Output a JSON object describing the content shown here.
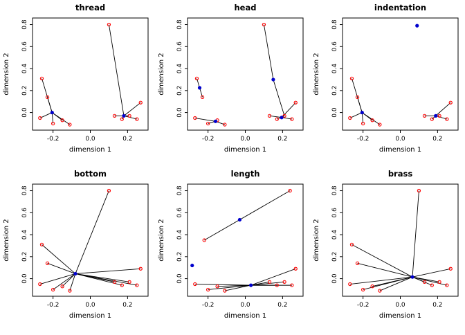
{
  "figure": {
    "background": "#ffffff",
    "rows": 2,
    "cols": 3
  },
  "chart_data": {
    "type": "scatter",
    "xlabel": "dimension 1",
    "ylabel": "dimension 2",
    "xlim": [
      -0.31,
      0.31
    ],
    "ylim": [
      -0.16,
      0.86
    ],
    "xticks": [
      -0.2,
      0.0,
      0.2
    ],
    "yticks": [
      0.0,
      0.2,
      0.4,
      0.6,
      0.8
    ],
    "grid": false,
    "legend": "none",
    "point_color": "#ff0000",
    "center_color": "#0000cd",
    "line_color": "#000000",
    "panels": [
      {
        "title": "thread",
        "red_points": [
          [
            -0.26,
            0.31
          ],
          [
            -0.23,
            0.14
          ],
          [
            -0.27,
            -0.05
          ],
          [
            -0.2,
            -0.1
          ],
          [
            -0.15,
            -0.07
          ],
          [
            -0.11,
            -0.11
          ],
          [
            0.1,
            0.8
          ],
          [
            0.13,
            -0.03
          ],
          [
            0.17,
            -0.06
          ],
          [
            0.21,
            -0.03
          ],
          [
            0.25,
            -0.06
          ],
          [
            0.27,
            0.09
          ]
        ],
        "blue_points": [
          [
            -0.205,
            0.0
          ],
          [
            0.18,
            -0.03
          ]
        ],
        "segments": [
          [
            -0.205,
            0.0,
            -0.26,
            0.31
          ],
          [
            -0.205,
            0.0,
            -0.23,
            0.14
          ],
          [
            -0.205,
            0.0,
            -0.27,
            -0.05
          ],
          [
            -0.205,
            0.0,
            -0.2,
            -0.1
          ],
          [
            -0.205,
            0.0,
            -0.15,
            -0.07
          ],
          [
            -0.205,
            0.0,
            -0.11,
            -0.11
          ],
          [
            0.18,
            -0.03,
            0.1,
            0.8
          ],
          [
            0.18,
            -0.03,
            0.13,
            -0.03
          ],
          [
            0.18,
            -0.03,
            0.17,
            -0.06
          ],
          [
            0.18,
            -0.03,
            0.21,
            -0.03
          ],
          [
            0.18,
            -0.03,
            0.25,
            -0.06
          ],
          [
            0.18,
            -0.03,
            0.27,
            0.09
          ]
        ]
      },
      {
        "title": "head",
        "red_points": [
          [
            -0.26,
            0.31
          ],
          [
            -0.23,
            0.14
          ],
          [
            -0.27,
            -0.05
          ],
          [
            -0.2,
            -0.1
          ],
          [
            -0.15,
            -0.07
          ],
          [
            -0.11,
            -0.11
          ],
          [
            0.1,
            0.8
          ],
          [
            0.13,
            -0.03
          ],
          [
            0.17,
            -0.06
          ],
          [
            0.21,
            -0.03
          ],
          [
            0.25,
            -0.06
          ],
          [
            0.27,
            0.09
          ]
        ],
        "blue_points": [
          [
            -0.245,
            0.225
          ],
          [
            -0.16,
            -0.08
          ],
          [
            0.15,
            0.3
          ],
          [
            0.195,
            -0.045
          ]
        ],
        "segments": [
          [
            -0.245,
            0.225,
            -0.26,
            0.31
          ],
          [
            -0.245,
            0.225,
            -0.23,
            0.14
          ],
          [
            -0.16,
            -0.08,
            -0.27,
            -0.05
          ],
          [
            -0.16,
            -0.08,
            -0.2,
            -0.1
          ],
          [
            -0.16,
            -0.08,
            -0.15,
            -0.07
          ],
          [
            -0.16,
            -0.08,
            -0.11,
            -0.11
          ],
          [
            0.15,
            0.3,
            0.1,
            0.8
          ],
          [
            0.15,
            0.3,
            0.21,
            -0.03
          ],
          [
            0.195,
            -0.045,
            0.13,
            -0.03
          ],
          [
            0.195,
            -0.045,
            0.17,
            -0.06
          ],
          [
            0.195,
            -0.045,
            0.21,
            -0.03
          ],
          [
            0.195,
            -0.045,
            0.25,
            -0.06
          ],
          [
            0.195,
            -0.045,
            0.27,
            0.09
          ]
        ]
      },
      {
        "title": "indentation",
        "red_points": [
          [
            -0.26,
            0.31
          ],
          [
            -0.23,
            0.14
          ],
          [
            -0.27,
            -0.05
          ],
          [
            -0.2,
            -0.1
          ],
          [
            -0.15,
            -0.07
          ],
          [
            -0.11,
            -0.11
          ],
          [
            0.13,
            -0.03
          ],
          [
            0.17,
            -0.06
          ],
          [
            0.21,
            -0.03
          ],
          [
            0.25,
            -0.06
          ],
          [
            0.27,
            0.09
          ]
        ],
        "blue_points": [
          [
            -0.205,
            0.0
          ],
          [
            0.19,
            -0.03
          ],
          [
            0.09,
            0.79
          ]
        ],
        "segments": [
          [
            -0.205,
            0.0,
            -0.26,
            0.31
          ],
          [
            -0.205,
            0.0,
            -0.23,
            0.14
          ],
          [
            -0.205,
            0.0,
            -0.27,
            -0.05
          ],
          [
            -0.205,
            0.0,
            -0.2,
            -0.1
          ],
          [
            -0.205,
            0.0,
            -0.15,
            -0.07
          ],
          [
            -0.205,
            0.0,
            -0.11,
            -0.11
          ],
          [
            0.19,
            -0.03,
            0.13,
            -0.03
          ],
          [
            0.19,
            -0.03,
            0.17,
            -0.06
          ],
          [
            0.19,
            -0.03,
            0.21,
            -0.03
          ],
          [
            0.19,
            -0.03,
            0.25,
            -0.06
          ],
          [
            0.19,
            -0.03,
            0.27,
            0.09
          ]
        ]
      },
      {
        "title": "bottom",
        "red_points": [
          [
            -0.26,
            0.31
          ],
          [
            -0.23,
            0.14
          ],
          [
            -0.27,
            -0.05
          ],
          [
            -0.2,
            -0.1
          ],
          [
            -0.15,
            -0.07
          ],
          [
            -0.11,
            -0.11
          ],
          [
            0.1,
            0.8
          ],
          [
            0.13,
            -0.03
          ],
          [
            0.17,
            -0.06
          ],
          [
            0.21,
            -0.03
          ],
          [
            0.25,
            -0.06
          ],
          [
            0.27,
            0.09
          ]
        ],
        "blue_points": [
          [
            -0.08,
            0.045
          ]
        ],
        "segments": [
          [
            -0.08,
            0.045,
            -0.26,
            0.31
          ],
          [
            -0.08,
            0.045,
            -0.23,
            0.14
          ],
          [
            -0.08,
            0.045,
            -0.27,
            -0.05
          ],
          [
            -0.08,
            0.045,
            -0.2,
            -0.1
          ],
          [
            -0.08,
            0.045,
            -0.15,
            -0.07
          ],
          [
            -0.08,
            0.045,
            -0.11,
            -0.11
          ],
          [
            -0.08,
            0.045,
            0.1,
            0.8
          ],
          [
            -0.08,
            0.045,
            0.13,
            -0.03
          ],
          [
            -0.08,
            0.045,
            0.17,
            -0.06
          ],
          [
            -0.08,
            0.045,
            0.21,
            -0.03
          ],
          [
            -0.08,
            0.045,
            0.25,
            -0.06
          ],
          [
            -0.08,
            0.045,
            0.27,
            0.09
          ]
        ]
      },
      {
        "title": "length",
        "red_points": [
          [
            -0.22,
            0.35
          ],
          [
            0.24,
            0.8
          ],
          [
            -0.27,
            -0.05
          ],
          [
            -0.2,
            -0.1
          ],
          [
            -0.15,
            -0.07
          ],
          [
            -0.11,
            -0.11
          ],
          [
            0.13,
            -0.03
          ],
          [
            0.17,
            -0.06
          ],
          [
            0.21,
            -0.03
          ],
          [
            0.25,
            -0.06
          ],
          [
            0.27,
            0.09
          ]
        ],
        "blue_points": [
          [
            -0.03,
            0.536
          ],
          [
            -0.285,
            0.12
          ],
          [
            0.03,
            -0.06
          ]
        ],
        "segments": [
          [
            -0.22,
            0.35,
            0.24,
            0.8
          ],
          [
            0.03,
            -0.06,
            -0.27,
            -0.05
          ],
          [
            0.03,
            -0.06,
            -0.2,
            -0.1
          ],
          [
            0.03,
            -0.06,
            -0.15,
            -0.07
          ],
          [
            0.03,
            -0.06,
            -0.11,
            -0.11
          ],
          [
            0.03,
            -0.06,
            0.13,
            -0.03
          ],
          [
            0.03,
            -0.06,
            0.17,
            -0.06
          ],
          [
            0.03,
            -0.06,
            0.21,
            -0.03
          ],
          [
            0.03,
            -0.06,
            0.25,
            -0.06
          ],
          [
            0.03,
            -0.06,
            0.27,
            0.09
          ]
        ]
      },
      {
        "title": "brass",
        "red_points": [
          [
            -0.26,
            0.31
          ],
          [
            -0.23,
            0.14
          ],
          [
            -0.27,
            -0.05
          ],
          [
            -0.2,
            -0.1
          ],
          [
            -0.15,
            -0.07
          ],
          [
            -0.11,
            -0.11
          ],
          [
            0.1,
            0.8
          ],
          [
            0.13,
            -0.03
          ],
          [
            0.17,
            -0.06
          ],
          [
            0.21,
            -0.03
          ],
          [
            0.25,
            -0.06
          ],
          [
            0.27,
            0.09
          ]
        ],
        "blue_points": [
          [
            0.065,
            0.015
          ]
        ],
        "segments": [
          [
            0.065,
            0.015,
            -0.26,
            0.31
          ],
          [
            0.065,
            0.015,
            -0.23,
            0.14
          ],
          [
            0.065,
            0.015,
            -0.27,
            -0.05
          ],
          [
            0.065,
            0.015,
            -0.2,
            -0.1
          ],
          [
            0.065,
            0.015,
            -0.15,
            -0.07
          ],
          [
            0.065,
            0.015,
            -0.11,
            -0.11
          ],
          [
            0.065,
            0.015,
            0.1,
            0.8
          ],
          [
            0.065,
            0.015,
            0.13,
            -0.03
          ],
          [
            0.065,
            0.015,
            0.17,
            -0.06
          ],
          [
            0.065,
            0.015,
            0.21,
            -0.03
          ],
          [
            0.065,
            0.015,
            0.25,
            -0.06
          ],
          [
            0.065,
            0.015,
            0.27,
            0.09
          ]
        ]
      }
    ]
  }
}
